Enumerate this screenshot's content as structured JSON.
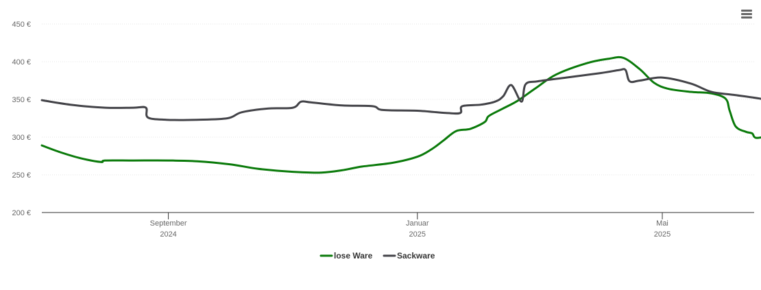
{
  "menu": {
    "icon": "hamburger-menu-icon"
  },
  "chart_data": {
    "type": "line",
    "title": "",
    "xlabel": "",
    "ylabel": "",
    "y_unit": "€",
    "ylim": [
      200,
      450
    ],
    "yticks": [
      "200 €",
      "250 €",
      "300 €",
      "350 €",
      "400 €",
      "450 €"
    ],
    "xlim": [
      "2024-07-01",
      "2025-06-15"
    ],
    "xticks": [
      {
        "date": "2024-09-01",
        "month": "September",
        "year": "2024"
      },
      {
        "date": "2025-01-01",
        "month": "Januar",
        "year": "2025"
      },
      {
        "date": "2025-05-01",
        "month": "Mai",
        "year": "2025"
      }
    ],
    "grid": true,
    "legend_position": "bottom-center",
    "series": [
      {
        "name": "lose Ware",
        "color": "#0a7a0a",
        "points": [
          [
            "2024-07-01",
            289
          ],
          [
            "2024-07-10",
            280
          ],
          [
            "2024-07-20",
            272
          ],
          [
            "2024-07-30",
            267
          ],
          [
            "2024-08-01",
            269
          ],
          [
            "2024-08-15",
            269
          ],
          [
            "2024-09-01",
            269
          ],
          [
            "2024-09-15",
            268
          ],
          [
            "2024-10-01",
            264
          ],
          [
            "2024-10-15",
            258
          ],
          [
            "2024-11-01",
            254
          ],
          [
            "2024-11-15",
            253
          ],
          [
            "2024-11-25",
            256
          ],
          [
            "2024-12-05",
            261
          ],
          [
            "2024-12-20",
            266
          ],
          [
            "2025-01-01",
            274
          ],
          [
            "2025-01-08",
            284
          ],
          [
            "2025-01-14",
            296
          ],
          [
            "2025-01-20",
            308
          ],
          [
            "2025-01-27",
            311
          ],
          [
            "2025-02-03",
            320
          ],
          [
            "2025-02-05",
            328
          ],
          [
            "2025-02-12",
            338
          ],
          [
            "2025-02-19",
            348
          ],
          [
            "2025-02-28",
            365
          ],
          [
            "2025-03-10",
            383
          ],
          [
            "2025-03-25",
            398
          ],
          [
            "2025-04-05",
            404
          ],
          [
            "2025-04-12",
            405
          ],
          [
            "2025-04-20",
            390
          ],
          [
            "2025-04-27",
            372
          ],
          [
            "2025-05-04",
            364
          ],
          [
            "2025-05-15",
            360
          ],
          [
            "2025-05-25",
            358
          ],
          [
            "2025-06-01",
            351
          ],
          [
            "2025-06-03",
            335
          ],
          [
            "2025-06-06",
            314
          ],
          [
            "2025-06-11",
            307
          ],
          [
            "2025-06-14",
            305
          ],
          [
            "2025-06-16",
            299
          ],
          [
            "2025-06-23",
            302
          ],
          [
            "2025-06-29",
            305
          ]
        ]
      },
      {
        "name": "Sackware",
        "color": "#434348",
        "points": [
          [
            "2024-07-01",
            349
          ],
          [
            "2024-07-15",
            343
          ],
          [
            "2024-08-01",
            339
          ],
          [
            "2024-08-15",
            339
          ],
          [
            "2024-08-21",
            339
          ],
          [
            "2024-08-22",
            326
          ],
          [
            "2024-08-31",
            323
          ],
          [
            "2024-09-15",
            323
          ],
          [
            "2024-09-30",
            325
          ],
          [
            "2024-10-07",
            333
          ],
          [
            "2024-10-20",
            338
          ],
          [
            "2024-11-01",
            339
          ],
          [
            "2024-11-05",
            347
          ],
          [
            "2024-11-10",
            346
          ],
          [
            "2024-11-25",
            342
          ],
          [
            "2024-12-10",
            341
          ],
          [
            "2024-12-15",
            336
          ],
          [
            "2025-01-01",
            335
          ],
          [
            "2025-01-15",
            332
          ],
          [
            "2025-01-22",
            332
          ],
          [
            "2025-01-23",
            341
          ],
          [
            "2025-02-01",
            343
          ],
          [
            "2025-02-08",
            347
          ],
          [
            "2025-02-12",
            354
          ],
          [
            "2025-02-16",
            369
          ],
          [
            "2025-02-21",
            347
          ],
          [
            "2025-02-23",
            370
          ],
          [
            "2025-03-01",
            374
          ],
          [
            "2025-03-15",
            379
          ],
          [
            "2025-04-01",
            385
          ],
          [
            "2025-04-10",
            389
          ],
          [
            "2025-04-13",
            389
          ],
          [
            "2025-04-15",
            374
          ],
          [
            "2025-04-20",
            375
          ],
          [
            "2025-05-01",
            379
          ],
          [
            "2025-05-15",
            371
          ],
          [
            "2025-05-25",
            360
          ],
          [
            "2025-06-05",
            356
          ],
          [
            "2025-06-20",
            350
          ],
          [
            "2025-06-29",
            343
          ]
        ]
      }
    ]
  }
}
